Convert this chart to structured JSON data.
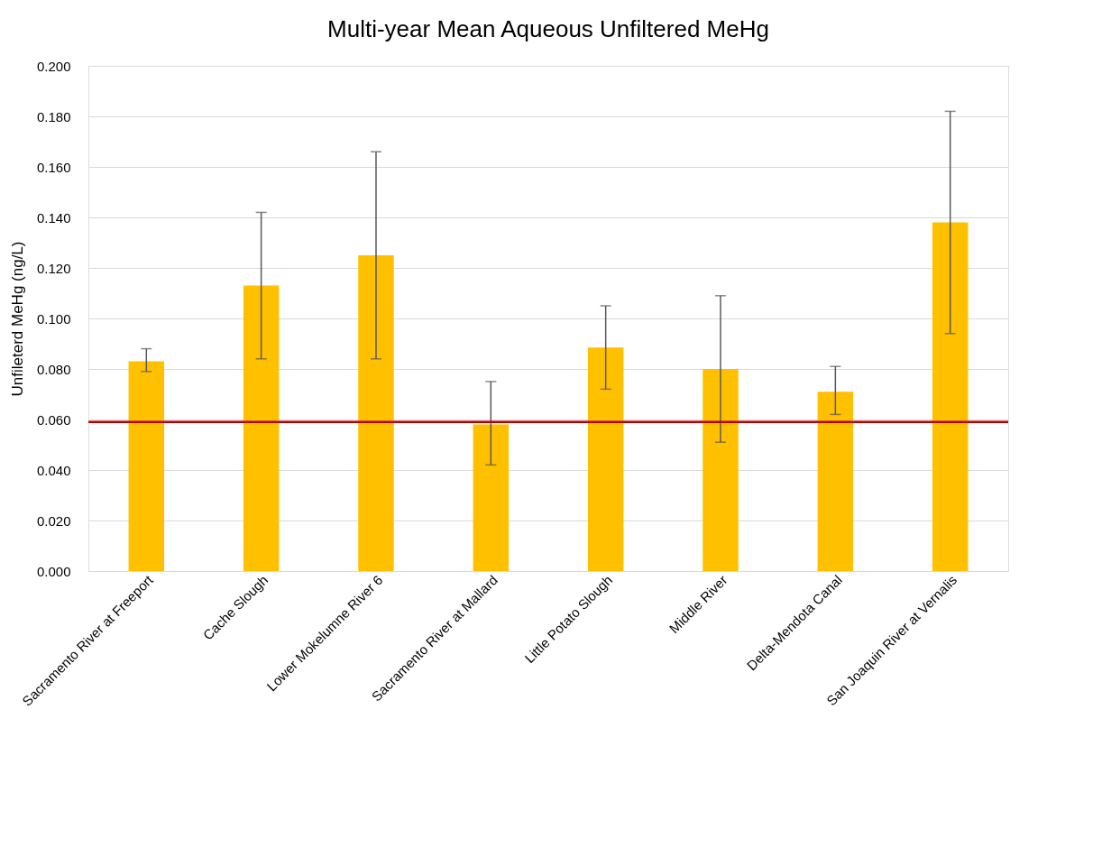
{
  "chart_data": {
    "type": "bar",
    "title": "Multi-year Mean Aqueous Unfiltered MeHg",
    "ylabel": "Unfileterd MeHg (ng/L)",
    "categories": [
      "Sacramento River at Freeport",
      "Cache Slough",
      "Lower Mokelumne River 6",
      "Sacramento River at Mallard",
      "Little Potato Slough",
      "Middle River",
      "Delta-Mendota Canal",
      "San Joaquin River at Vernalis"
    ],
    "series": [
      {
        "color": "#ffc000",
        "values": [
          0.083,
          0.113,
          0.125,
          0.058,
          0.0885,
          0.08,
          0.071,
          0.138
        ],
        "errors": [
          [
            0.079,
            0.088
          ],
          [
            0.084,
            0.142
          ],
          [
            0.084,
            0.166
          ],
          [
            0.042,
            0.075
          ],
          [
            0.072,
            0.105
          ],
          [
            0.051,
            0.109
          ],
          [
            0.062,
            0.081
          ],
          [
            0.094,
            0.182
          ]
        ]
      }
    ],
    "ylim": [
      0,
      0.2
    ],
    "yticks": [
      {
        "value": 0,
        "label": "0.000"
      },
      {
        "value": 0.02,
        "label": "0.020"
      },
      {
        "value": 0.04,
        "label": "0.040"
      },
      {
        "value": 0.06,
        "label": "0.060"
      },
      {
        "value": 0.08,
        "label": "0.080"
      },
      {
        "value": 0.1,
        "label": "0.100"
      },
      {
        "value": 0.12,
        "label": "0.120"
      },
      {
        "value": 0.14,
        "label": "0.140"
      },
      {
        "value": 0.16,
        "label": "0.160"
      },
      {
        "value": 0.18,
        "label": "0.180"
      },
      {
        "value": 0.2,
        "label": "0.200"
      }
    ],
    "ref_lines": [
      {
        "axis": "y",
        "value": 0.059,
        "color": "#c00000"
      }
    ],
    "grid": "y"
  }
}
